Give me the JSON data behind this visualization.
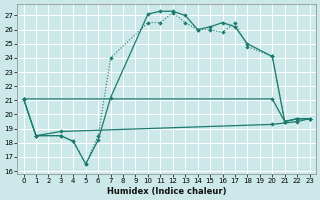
{
  "xlabel": "Humidex (Indice chaleur)",
  "xlim": [
    -0.5,
    23.5
  ],
  "ylim": [
    15.8,
    27.8
  ],
  "yticks": [
    16,
    17,
    18,
    19,
    20,
    21,
    22,
    23,
    24,
    25,
    26,
    27
  ],
  "xticks": [
    0,
    1,
    2,
    3,
    4,
    5,
    6,
    7,
    8,
    9,
    10,
    11,
    12,
    13,
    14,
    15,
    16,
    17,
    18,
    19,
    20,
    21,
    22,
    23
  ],
  "bg_color": "#cce8e8",
  "grid_color": "#b8d8d8",
  "line_color": "#1a7a6e",
  "s1_x": [
    0,
    1,
    3,
    4,
    5,
    6,
    7,
    10,
    11,
    12,
    13,
    14,
    15,
    16,
    17,
    18,
    20,
    21,
    22,
    23
  ],
  "s1_y": [
    21.1,
    18.5,
    18.5,
    18.1,
    16.5,
    18.2,
    21.2,
    27.1,
    27.3,
    27.3,
    27.0,
    26.0,
    26.2,
    26.5,
    26.2,
    25.0,
    24.1,
    19.5,
    19.7,
    19.7
  ],
  "s2_x": [
    0,
    1,
    3,
    4,
    5,
    6,
    7,
    10,
    11,
    12,
    13,
    14,
    15,
    16,
    17,
    18,
    20,
    21,
    22,
    23
  ],
  "s2_y": [
    21.1,
    18.5,
    18.5,
    18.1,
    16.5,
    18.5,
    24.0,
    26.5,
    26.5,
    27.2,
    26.5,
    26.0,
    26.0,
    25.8,
    26.5,
    24.8,
    24.1,
    19.5,
    19.7,
    19.7
  ],
  "s3_x": [
    0,
    20,
    21,
    22,
    23
  ],
  "s3_y": [
    21.1,
    21.1,
    19.5,
    19.7,
    19.7
  ],
  "s4_x": [
    0,
    1,
    3,
    20,
    22,
    23
  ],
  "s4_y": [
    21.1,
    18.5,
    18.8,
    19.3,
    19.5,
    19.7
  ],
  "figsize": [
    3.2,
    2.0
  ],
  "dpi": 100
}
